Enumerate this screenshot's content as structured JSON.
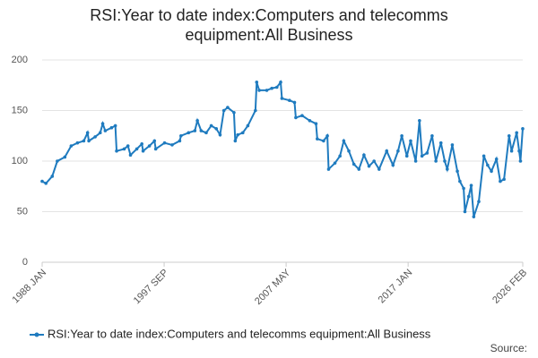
{
  "chart_data": {
    "type": "line",
    "title": "RSI:Year to date index:Computers and telecomms equipment:All Business",
    "source": "Source:",
    "x": [
      1988.0,
      1988.3,
      1988.8,
      1989.2,
      1989.8,
      1990.3,
      1990.8,
      1991.3,
      1991.6,
      1991.7,
      1992.2,
      1992.6,
      1992.8,
      1993.0,
      1993.5,
      1993.8,
      1993.9,
      1994.5,
      1994.8,
      1995.0,
      1995.5,
      1995.9,
      1996.0,
      1996.5,
      1996.9,
      1997.0,
      1997.7,
      1998.3,
      1998.9,
      1999.0,
      1999.6,
      2000.1,
      2000.3,
      2000.6,
      2001.0,
      2001.4,
      2001.8,
      2002.1,
      2002.4,
      2002.7,
      2003.2,
      2003.3,
      2003.5,
      2003.9,
      2004.3,
      2004.9,
      2005.0,
      2005.2,
      2005.8,
      2006.2,
      2006.6,
      2006.9,
      2007.0,
      2007.6,
      2008.0,
      2008.1,
      2008.6,
      2009.2,
      2009.7,
      2009.8,
      2010.3,
      2010.6,
      2010.7,
      2011.2,
      2011.6,
      2011.9,
      2012.3,
      2012.7,
      2013.1,
      2013.5,
      2013.9,
      2014.3,
      2014.7,
      2015.3,
      2015.8,
      2016.2,
      2016.5,
      2016.9,
      2017.2,
      2017.6,
      2017.9,
      2018.1,
      2018.5,
      2018.9,
      2019.2,
      2019.6,
      2019.9,
      2020.1,
      2020.5,
      2020.9,
      2021.1,
      2021.4,
      2021.5,
      2021.8,
      2022.0,
      2022.2,
      2022.6,
      2023.0,
      2023.3,
      2023.6,
      2024.0,
      2024.3,
      2024.6,
      2025.0,
      2025.2,
      2025.6,
      2025.8,
      2025.9,
      2026.08
    ],
    "series": [
      {
        "name": "RSI:Year to date index:Computers and telecomms equipment:All Business",
        "color": "#1f7bbf",
        "values": [
          80,
          78,
          85,
          100,
          104,
          115,
          118,
          120,
          128,
          120,
          124,
          128,
          137,
          130,
          133,
          135,
          110,
          112,
          115,
          106,
          112,
          117,
          110,
          115,
          120,
          112,
          118,
          116,
          120,
          125,
          128,
          130,
          140,
          130,
          128,
          135,
          132,
          126,
          150,
          153,
          148,
          120,
          126,
          128,
          135,
          150,
          178,
          170,
          170,
          172,
          173,
          178,
          162,
          160,
          158,
          143,
          145,
          140,
          137,
          122,
          120,
          125,
          92,
          98,
          105,
          120,
          110,
          97,
          92,
          106,
          95,
          100,
          92,
          110,
          96,
          110,
          125,
          105,
          120,
          100,
          140,
          105,
          108,
          125,
          100,
          118,
          100,
          92,
          116,
          90,
          80,
          73,
          50,
          65,
          76,
          45,
          60,
          105,
          96,
          90,
          102,
          80,
          82,
          125,
          110,
          128,
          110,
          100,
          132
        ]
      }
    ],
    "xlim": [
      1988.0,
      2026.083
    ],
    "xticks": [
      {
        "value": 1988.0,
        "label": "1988 JAN"
      },
      {
        "value": 1997.667,
        "label": "1997 SEP"
      },
      {
        "value": 2007.333,
        "label": "2007 MAY"
      },
      {
        "value": 2017.0,
        "label": "2017 JAN"
      },
      {
        "value": 2026.083,
        "label": "2026 FEB"
      }
    ],
    "ylim": [
      0,
      200
    ],
    "yticks": [
      0,
      50,
      100,
      150,
      200
    ],
    "grid": true,
    "legend": "bottom"
  }
}
